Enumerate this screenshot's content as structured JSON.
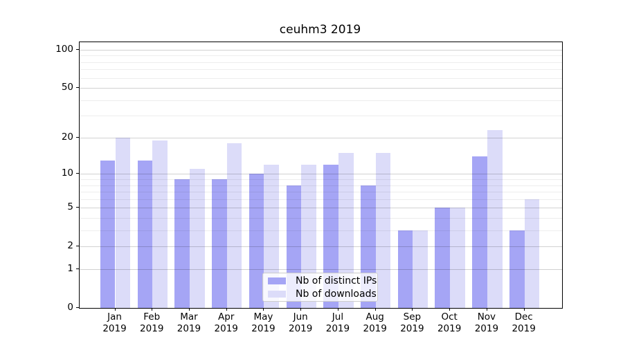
{
  "chart_data": {
    "type": "bar",
    "title": "ceuhm3 2019",
    "categories": [
      "Jan",
      "Feb",
      "Mar",
      "Apr",
      "May",
      "Jun",
      "Jul",
      "Aug",
      "Sep",
      "Oct",
      "Nov",
      "Dec"
    ],
    "x_tick_year": "2019",
    "series": [
      {
        "name": "Nb of distinct IPs",
        "color": "#a5a5f5",
        "values": [
          13,
          13,
          9,
          9,
          10,
          8,
          12,
          8,
          3,
          5,
          14,
          3
        ]
      },
      {
        "name": "Nb of downloads",
        "color": "#dcdcf9",
        "values": [
          20,
          19,
          11,
          18,
          12,
          12,
          15,
          15,
          3,
          5,
          23,
          6
        ]
      }
    ],
    "xlabel": "",
    "ylabel": "",
    "y_scale": "log10(1+value)",
    "ylim": [
      0,
      115
    ],
    "y_major_ticks": [
      0,
      1,
      2,
      5,
      10,
      20,
      50,
      100
    ],
    "y_minor_gridlines": [
      3,
      4,
      6,
      7,
      8,
      9,
      30,
      40,
      60,
      70,
      80,
      90
    ],
    "grid": "on",
    "gridlines_above_bars": true,
    "legend_position": "lower center"
  }
}
